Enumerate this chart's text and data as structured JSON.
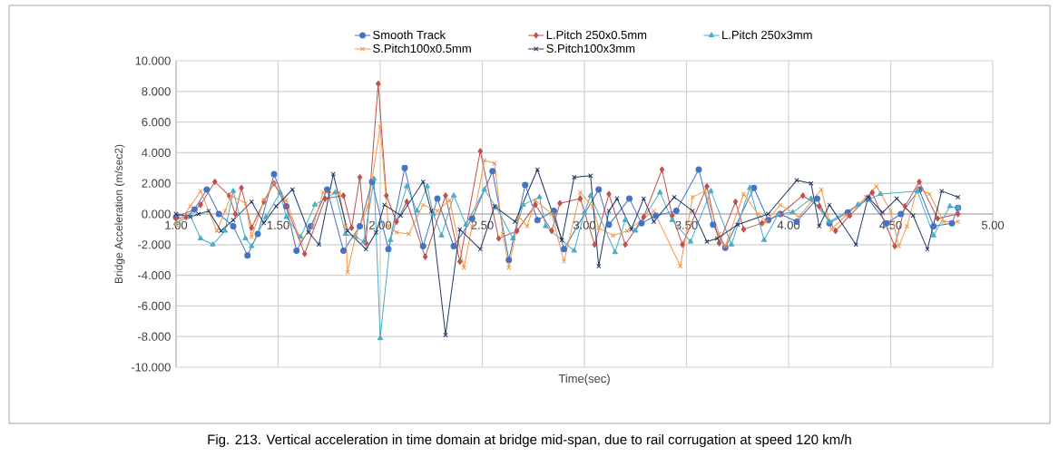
{
  "chart_data": {
    "type": "line",
    "xlabel": "Time(sec)",
    "ylabel": "Bridge Acceleration (m/sec2)",
    "xlim": [
      1,
      5
    ],
    "ylim": [
      -10,
      10
    ],
    "xticks": [
      {
        "value": 1,
        "label": "1.00"
      },
      {
        "value": 1.5,
        "label": "1.50"
      },
      {
        "value": 2,
        "label": "2.00"
      },
      {
        "value": 2.5,
        "label": "2.50"
      },
      {
        "value": 3,
        "label": "3.00"
      },
      {
        "value": 3.5,
        "label": "3.50"
      },
      {
        "value": 4,
        "label": "4.00"
      },
      {
        "value": 4.5,
        "label": "4.50"
      },
      {
        "value": 5,
        "label": "5.00"
      }
    ],
    "yticks": [
      {
        "value": -10,
        "label": "-10.000"
      },
      {
        "value": -8,
        "label": "-8.000"
      },
      {
        "value": -6,
        "label": "-6.000"
      },
      {
        "value": -4,
        "label": "-4.000"
      },
      {
        "value": -2,
        "label": "-2.000"
      },
      {
        "value": 0,
        "label": "0.000"
      },
      {
        "value": 2,
        "label": "2.000"
      },
      {
        "value": 4,
        "label": "4.000"
      },
      {
        "value": 6,
        "label": "6.000"
      },
      {
        "value": 8,
        "label": "8.000"
      },
      {
        "value": 10,
        "label": "10.000"
      }
    ],
    "grid": true,
    "legend": "top",
    "line_style": "solid",
    "annotations": [
      "Fig. 213. Vertical acceleration in time domain at bridge mid-span, due to rail corrugation at speed 120 km/h"
    ],
    "series": [
      {
        "name": "Smooth Track",
        "color": "#4472c4",
        "marker": "circle",
        "x": [
          1.0,
          1.09,
          1.15,
          1.21,
          1.28,
          1.35,
          1.4,
          1.48,
          1.54,
          1.59,
          1.66,
          1.74,
          1.82,
          1.9,
          1.96,
          2.04,
          2.12,
          2.21,
          2.28,
          2.36,
          2.45,
          2.55,
          2.63,
          2.71,
          2.77,
          2.85,
          2.9,
          3.07,
          3.12,
          3.22,
          3.28,
          3.35,
          3.45,
          3.56,
          3.63,
          3.69,
          3.83,
          3.9,
          3.96,
          4.04,
          4.14,
          4.2,
          4.29,
          4.39,
          4.48,
          4.55,
          4.64,
          4.71,
          4.8,
          4.83
        ],
        "values": [
          -0.2,
          0.3,
          1.6,
          0.0,
          -0.8,
          -2.7,
          -1.3,
          2.6,
          0.5,
          -2.4,
          -0.8,
          1.6,
          -2.4,
          -0.8,
          2.1,
          -2.3,
          3.0,
          -2.1,
          1.0,
          -2.1,
          -0.3,
          2.8,
          -3.0,
          1.9,
          -0.4,
          0.2,
          -2.3,
          1.6,
          -0.7,
          1.0,
          -0.6,
          -0.1,
          0.2,
          2.9,
          -0.7,
          -2.2,
          1.7,
          -0.4,
          0.0,
          -0.5,
          1.0,
          -0.6,
          0.1,
          1.0,
          -0.6,
          0.0,
          1.6,
          -0.8,
          -0.6,
          0.4
        ]
      },
      {
        "name": "L.Pitch 250x0.5mm",
        "color": "#c0504d",
        "marker": "diamond",
        "x": [
          1.0,
          1.05,
          1.12,
          1.19,
          1.26,
          1.29,
          1.32,
          1.37,
          1.43,
          1.48,
          1.54,
          1.63,
          1.73,
          1.82,
          1.86,
          1.9,
          1.93,
          1.99,
          2.03,
          2.08,
          2.13,
          2.22,
          2.32,
          2.39,
          2.49,
          2.58,
          2.67,
          2.76,
          2.84,
          2.88,
          2.98,
          3.05,
          3.12,
          3.2,
          3.29,
          3.38,
          3.43,
          3.48,
          3.6,
          3.66,
          3.74,
          3.78,
          3.87,
          3.96,
          4.07,
          4.15,
          4.23,
          4.3,
          4.41,
          4.52,
          4.57,
          4.64,
          4.73,
          4.83
        ],
        "values": [
          -0.3,
          -0.2,
          0.6,
          2.1,
          1.2,
          0.0,
          1.7,
          -0.9,
          0.8,
          2.0,
          0.5,
          -2.6,
          1.0,
          1.2,
          -0.9,
          2.4,
          -1.9,
          8.5,
          1.2,
          -0.5,
          0.8,
          -2.8,
          1.2,
          -3.1,
          4.1,
          -1.6,
          -1.1,
          0.6,
          -1.1,
          0.7,
          1.0,
          -2.0,
          1.3,
          -2.0,
          -0.2,
          2.9,
          -0.1,
          -2.0,
          1.8,
          -1.9,
          0.8,
          -1.0,
          -0.6,
          0.0,
          1.2,
          0.5,
          -1.1,
          -0.1,
          1.4,
          -2.1,
          0.5,
          2.1,
          -0.3,
          0.0
        ]
      },
      {
        "name": "L.Pitch 250x3mm",
        "color": "#4bacc6",
        "marker": "triangle",
        "x": [
          1.0,
          1.07,
          1.12,
          1.18,
          1.24,
          1.28,
          1.34,
          1.37,
          1.44,
          1.51,
          1.54,
          1.61,
          1.68,
          1.78,
          1.83,
          1.88,
          1.92,
          1.97,
          2.0,
          2.05,
          2.13,
          2.18,
          2.23,
          2.26,
          2.3,
          2.36,
          2.42,
          2.51,
          2.57,
          2.65,
          2.7,
          2.78,
          2.81,
          2.95,
          3.0,
          3.03,
          3.15,
          3.2,
          3.25,
          3.37,
          3.43,
          3.52,
          3.62,
          3.72,
          3.81,
          3.88,
          3.95,
          4.02,
          4.11,
          4.2,
          4.34,
          4.45,
          4.63,
          4.71,
          4.79,
          4.83
        ],
        "values": [
          -0.6,
          -0.1,
          -1.6,
          -2.0,
          -1.1,
          1.5,
          -1.6,
          -2.1,
          -0.2,
          1.4,
          -0.2,
          -1.5,
          0.6,
          1.4,
          -1.3,
          -1.5,
          -1.8,
          2.3,
          -8.1,
          -1.7,
          1.8,
          0.2,
          1.8,
          0.0,
          -1.4,
          1.2,
          -0.7,
          1.6,
          0.4,
          -1.6,
          0.6,
          1.1,
          -0.8,
          -2.4,
          0.1,
          1.2,
          -2.5,
          -0.4,
          -1.1,
          1.4,
          -0.4,
          -1.8,
          1.5,
          -2.0,
          1.7,
          -1.7,
          0.0,
          0.1,
          1.0,
          -0.5,
          0.6,
          1.3,
          1.5,
          -1.4,
          0.5,
          0.4
        ]
      },
      {
        "name": "S.Pitch100x0.5mm",
        "color": "#f79646",
        "marker": "cross",
        "x": [
          1.0,
          1.07,
          1.12,
          1.2,
          1.24,
          1.27,
          1.34,
          1.37,
          1.43,
          1.48,
          1.54,
          1.61,
          1.67,
          1.72,
          1.8,
          1.83,
          1.84,
          1.88,
          1.94,
          2.0,
          2.04,
          2.08,
          2.14,
          2.21,
          2.28,
          2.34,
          2.41,
          2.45,
          2.51,
          2.56,
          2.6,
          2.63,
          2.68,
          2.72,
          2.76,
          2.84,
          2.9,
          2.98,
          3.04,
          3.07,
          3.14,
          3.21,
          3.34,
          3.47,
          3.53,
          3.59,
          3.66,
          3.69,
          3.78,
          3.85,
          3.89,
          3.96,
          4.05,
          4.16,
          4.21,
          4.28,
          4.38,
          4.43,
          4.5,
          4.54,
          4.58,
          4.63,
          4.69,
          4.76,
          4.83
        ],
        "values": [
          -0.7,
          0.5,
          1.5,
          -1.1,
          0.2,
          1.2,
          0.7,
          -1.5,
          0.9,
          2.0,
          0.9,
          -1.8,
          -0.8,
          1.4,
          1.4,
          -0.8,
          -3.8,
          -1.4,
          0.5,
          5.7,
          -0.8,
          -1.2,
          -1.3,
          0.6,
          0.2,
          0.9,
          -3.5,
          -0.8,
          3.5,
          3.3,
          -1.3,
          -3.5,
          -0.2,
          -0.8,
          0.9,
          0.0,
          -3.1,
          1.4,
          0.5,
          -0.9,
          -1.4,
          -1.1,
          0.2,
          -3.4,
          1.1,
          1.5,
          -1.3,
          -2.1,
          1.3,
          0.0,
          -0.5,
          0.6,
          -0.2,
          1.6,
          -1.0,
          -0.1,
          1.1,
          1.8,
          0.2,
          -2.1,
          -0.8,
          1.7,
          1.3,
          -0.5,
          -0.5
        ]
      },
      {
        "name": "S.Pitch100x3mm",
        "color": "#1f3864",
        "marker": "cross",
        "x": [
          1.0,
          1.07,
          1.11,
          1.16,
          1.22,
          1.28,
          1.37,
          1.43,
          1.49,
          1.57,
          1.65,
          1.7,
          1.77,
          1.84,
          1.93,
          1.98,
          2.02,
          2.1,
          2.21,
          2.25,
          2.32,
          2.39,
          2.49,
          2.56,
          2.66,
          2.77,
          2.89,
          2.95,
          3.03,
          3.07,
          3.12,
          3.16,
          3.23,
          3.29,
          3.34,
          3.44,
          3.53,
          3.6,
          3.65,
          3.75,
          3.9,
          4.04,
          4.11,
          4.15,
          4.2,
          4.33,
          4.39,
          4.46,
          4.53,
          4.61,
          4.68,
          4.75,
          4.83
        ],
        "values": [
          0.0,
          -0.2,
          0.0,
          0.2,
          -1.1,
          -0.4,
          0.8,
          -0.6,
          0.5,
          1.6,
          -1.2,
          -2.0,
          2.6,
          -1.1,
          -2.3,
          -1.2,
          0.6,
          -0.1,
          2.1,
          0.2,
          -7.9,
          -1.0,
          -2.3,
          0.5,
          -0.5,
          2.9,
          -1.7,
          2.4,
          2.5,
          -3.4,
          0.2,
          1.0,
          -1.0,
          1.0,
          -0.5,
          1.1,
          0.2,
          -1.8,
          -1.6,
          -0.7,
          0.0,
          2.2,
          2.0,
          -0.8,
          0.6,
          -2.0,
          1.1,
          0.1,
          1.0,
          -0.1,
          -2.3,
          1.5,
          1.1
        ]
      }
    ]
  }
}
